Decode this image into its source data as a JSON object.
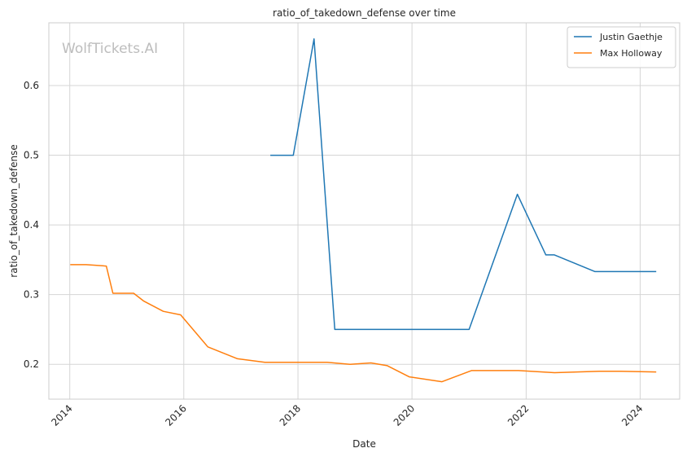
{
  "chart_data": {
    "type": "line",
    "title": "ratio_of_takedown_defense over time",
    "xlabel": "Date",
    "ylabel": "ratio_of_takedown_defense",
    "watermark": "WolfTickets.AI",
    "xlim": [
      "2013-08-20",
      "2024-09-10"
    ],
    "ylim": [
      0.15,
      0.69
    ],
    "x_ticks": [
      "2014",
      "2016",
      "2018",
      "2020",
      "2022",
      "2024"
    ],
    "y_ticks": [
      "0.2",
      "0.3",
      "0.4",
      "0.5",
      "0.6"
    ],
    "grid": true,
    "legend_position": "top-right",
    "series": [
      {
        "name": "Justin Gaethje",
        "color": "#1f77b4",
        "x": [
          "2017-07-08",
          "2017-12-02",
          "2018-04-14",
          "2018-08-25",
          "2019-03-30",
          "2019-09-14",
          "2020-05-09",
          "2020-10-24",
          "2021-01-01",
          "2021-11-06",
          "2022-05-07",
          "2022-07-01",
          "2023-03-18",
          "2023-07-29",
          "2024-04-13"
        ],
        "y": [
          0.5,
          0.5,
          0.667,
          0.25,
          0.25,
          0.25,
          0.25,
          0.25,
          0.25,
          0.444,
          0.357,
          0.357,
          0.333,
          0.333,
          0.333
        ]
      },
      {
        "name": "Max Holloway",
        "color": "#ff7f0e",
        "x": [
          "2014-01-04",
          "2014-04-16",
          "2014-08-23",
          "2014-10-04",
          "2015-02-14",
          "2015-04-18",
          "2015-08-23",
          "2015-12-12",
          "2016-06-03",
          "2016-12-10",
          "2017-06-03",
          "2017-12-02",
          "2018-07-07",
          "2018-12-01",
          "2019-04-13",
          "2019-07-27",
          "2019-12-14",
          "2020-07-11",
          "2021-01-16",
          "2021-11-13",
          "2022-07-02",
          "2023-04-15",
          "2023-08-26",
          "2024-04-13"
        ],
        "y": [
          0.343,
          0.343,
          0.341,
          0.302,
          0.302,
          0.291,
          0.276,
          0.271,
          0.225,
          0.208,
          0.203,
          0.203,
          0.203,
          0.2,
          0.202,
          0.198,
          0.182,
          0.175,
          0.191,
          0.191,
          0.188,
          0.19,
          0.19,
          0.189
        ]
      }
    ]
  }
}
